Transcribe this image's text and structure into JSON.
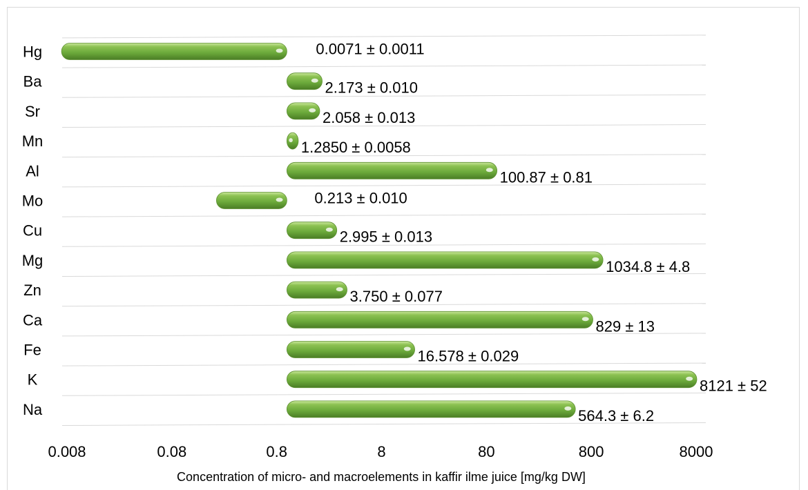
{
  "chart_data": {
    "type": "bar",
    "orientation": "horizontal",
    "x_scale": "log",
    "bar_base": 1,
    "xlim": [
      0.008,
      8000
    ],
    "xticks": [
      "0.008",
      "0.08",
      "0.8",
      "8",
      "80",
      "800",
      "8000"
    ],
    "xlabel": "Concentration of  micro- and macroelements in kaffir ilme juice [mg/kg DW]",
    "categories": [
      "Hg",
      "Ba",
      "Sr",
      "Mn",
      "Al",
      "Mo",
      "Cu",
      "Mg",
      "Zn",
      "Ca",
      "Fe",
      "K",
      "Na"
    ],
    "values": [
      0.0071,
      2.173,
      2.058,
      1.285,
      100.87,
      0.213,
      2.995,
      1034.8,
      3.75,
      829,
      16.578,
      8121,
      564.3
    ],
    "data_labels": [
      "0.0071 ± 0.0011",
      "2.173 ± 0.010",
      "2.058 ± 0.013",
      "1.2850 ± 0.0058",
      "100.87 ± 0.81",
      "0.213 ± 0.010",
      "2.995 ± 0.013",
      "1034.8 ± 4.8",
      "3.750 ± 0.077",
      "829 ± 13",
      "16.578 ± 0.029",
      "8121 ± 52",
      "564.3 ± 6.2"
    ],
    "grid": true,
    "bar_color": "#70ad47"
  }
}
